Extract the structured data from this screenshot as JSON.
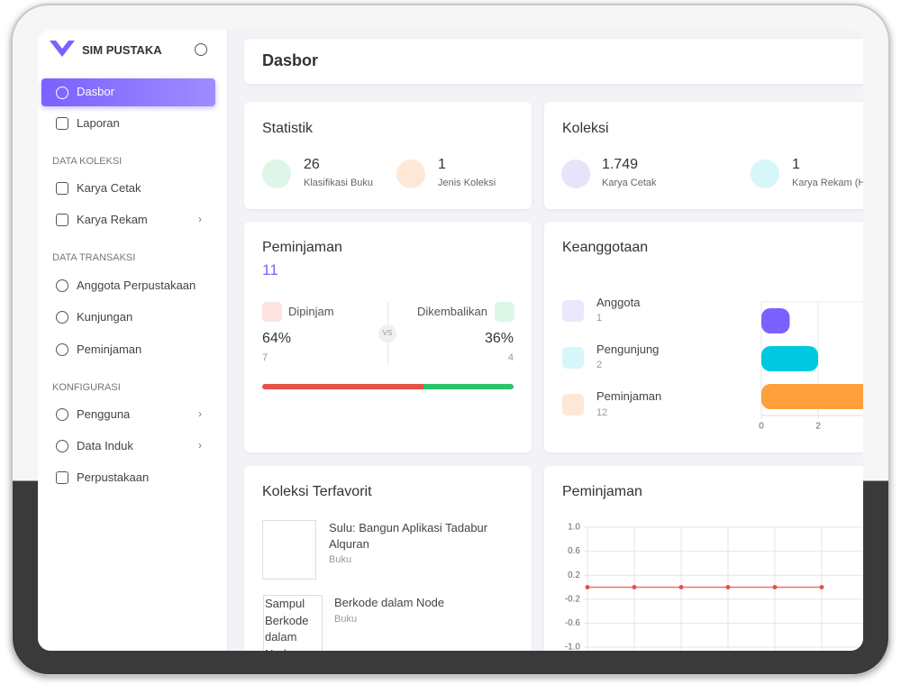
{
  "sidebar": {
    "brand": "SIM PUSTAKA",
    "items": [
      "Dasbor",
      "Laporan"
    ],
    "sections": [
      {
        "heading": "DATA KOLEKSI",
        "items": [
          "Karya Cetak",
          "Karya Rekam"
        ]
      },
      {
        "heading": "DATA TRANSAKSI",
        "items": [
          "Anggota Perpustakaan",
          "Kunjungan",
          "Peminjaman"
        ]
      },
      {
        "heading": "KONFIGURASI",
        "items": [
          "Pengguna",
          "Data Induk",
          "Perpustakaan"
        ]
      }
    ]
  },
  "header": {
    "title": "Dasbor"
  },
  "statistik": {
    "title": "Statistik",
    "stats": [
      {
        "value": 26,
        "label": "Klasifikasi Buku"
      },
      {
        "value": 1,
        "label": "Jenis Koleksi"
      }
    ]
  },
  "koleksi": {
    "title": "Koleksi",
    "stats": [
      {
        "value": 1749,
        "value_label": "1.749",
        "label": "Karya Cetak"
      },
      {
        "value": 1,
        "value_label": "1",
        "label": "Karya Rekam (H"
      }
    ]
  },
  "peminjaman": {
    "title": "Peminjaman",
    "total": 11,
    "vs": "VS",
    "parts": [
      {
        "label": "Dipinjam",
        "percent": 64,
        "percent_label": "64%",
        "count": 7,
        "color": "#e5534b"
      },
      {
        "label": "Dikembalikan",
        "percent": 36,
        "percent_label": "36%",
        "count": 4,
        "color": "#2cc46b"
      }
    ]
  },
  "favorit": {
    "title": "Koleksi Terfavorit",
    "items": [
      {
        "title": "Sulu: Bangun Aplikasi Tadabur Alquran",
        "type": "Buku"
      },
      {
        "title": "Berkode dalam Node",
        "type": "Buku",
        "image_alt": "Sampul Berkode dalam Node"
      }
    ]
  },
  "chart_data": [
    {
      "type": "bar",
      "title": "Keanggotaan",
      "categories": [
        "Anggota",
        "Pengunjung",
        "Peminjaman"
      ],
      "values": [
        1,
        2,
        12
      ],
      "colors": [
        "#7b61ff",
        "#00c8e0",
        "#ffa03c"
      ],
      "xlim": [
        0,
        14
      ],
      "xticks": [
        0,
        2
      ],
      "grid": true
    },
    {
      "type": "line",
      "title": "Peminjaman",
      "categories": [
        null,
        null,
        null,
        null,
        null,
        null
      ],
      "values": [
        0,
        0,
        0,
        0,
        0,
        0
      ],
      "color": "#f07070",
      "ylim": [
        -1,
        1
      ],
      "yticks": [
        {
          "value": 1,
          "label": "1.0"
        },
        0.6,
        0.2,
        -0.2,
        -0.6,
        {
          "value": -1,
          "label": "-1.0"
        }
      ],
      "grid": true
    }
  ]
}
